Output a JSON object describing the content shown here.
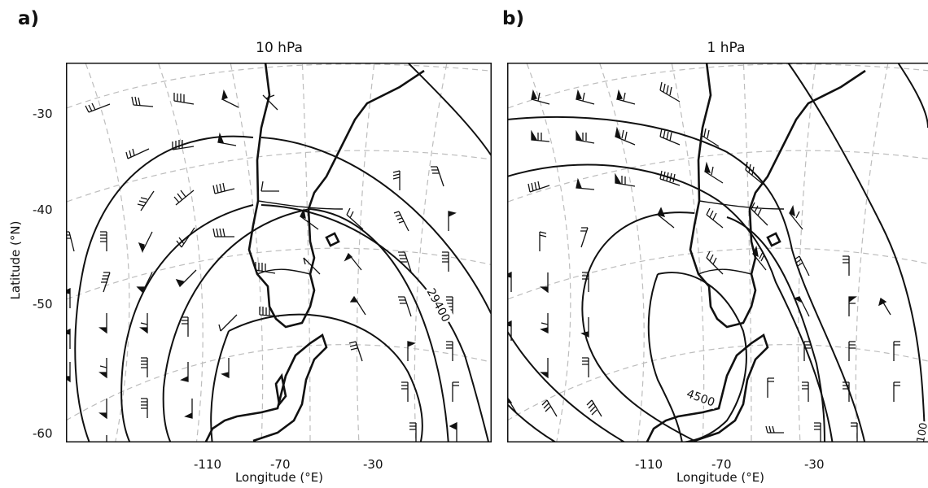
{
  "panels": [
    {
      "letter": "a)",
      "title": "10 hPa",
      "contour_label": "29400",
      "lon_ticks": [
        "-110",
        "-70",
        "-30"
      ],
      "xlabel": "Longitude (°E)"
    },
    {
      "letter": "b)",
      "title": "1 hPa",
      "contour_label": "4500",
      "contour_label_edge": "100",
      "lon_ticks": [
        "-110",
        "-70",
        "-30"
      ],
      "xlabel": "Longitude (°E)"
    }
  ],
  "lat_ticks": [
    "-30",
    "-40",
    "-50",
    "-60"
  ],
  "ylabel": "Latitude (°N)",
  "colors": {
    "contour": "#111111",
    "grid": "#bdbdbd",
    "coast": "#111111",
    "barb": "#111111"
  }
}
